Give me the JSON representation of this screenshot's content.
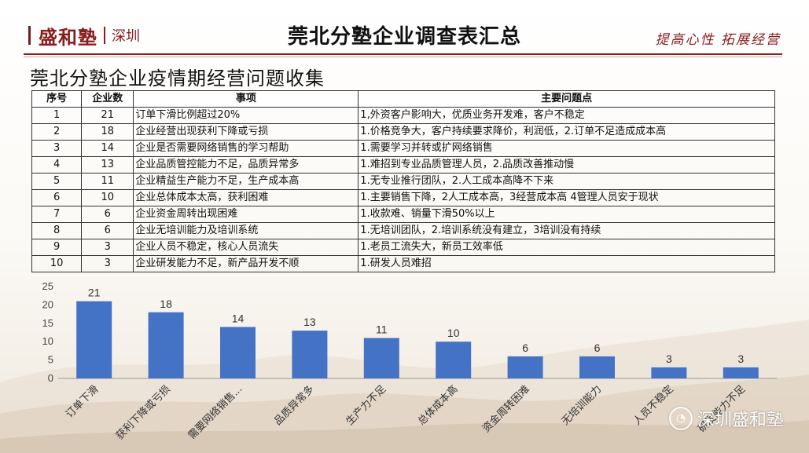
{
  "header": {
    "logo_brand": "盛和塾",
    "logo_city": "深圳",
    "title": "莞北分塾企业调查表汇总",
    "slogan": "提高心性  拓展经营"
  },
  "subtitle": "莞北分塾企业疫情期经营问题收集",
  "table": {
    "headers": [
      "序号",
      "企业数",
      "事项",
      "主要问题点"
    ],
    "rows": [
      [
        "1",
        "21",
        "订单下滑比例超过20%",
        "1,外资客户影响大，优质业务开发难，客户不稳定"
      ],
      [
        "2",
        "18",
        "企业经营出现获利下降或亏损",
        "1.价格竞争大，客户持续要求降价，利润低，2.订单不足造成成本高"
      ],
      [
        "3",
        "14",
        "企业是否需要网络销售的学习帮助",
        "1.需要学习并转或扩网络销售"
      ],
      [
        "4",
        "13",
        "企业品质管控能力不足，品质异常多",
        "1.难招到专业品质管理人员，2.品质改善推动慢"
      ],
      [
        "5",
        "11",
        "企业精益生产能力不足，生产成本高",
        "1.无专业推行团队，2.人工成本高降不下来"
      ],
      [
        "6",
        "10",
        "企业总体成本太高，获利困难",
        "1.主要销售下降，2人工成本高，3经营成本高 4管理人员安于现状"
      ],
      [
        "7",
        "6",
        "企业资金周转出现困难",
        "1.收款难、销量下滑50%以上"
      ],
      [
        "8",
        "6",
        "企业无培训能力及培训系统",
        "1.无培训团队，2.培训系统没有建立，3培训没有持续"
      ],
      [
        "9",
        "3",
        "企业人员不稳定，核心人员流失",
        "1.老员工流失大，新员工效率低"
      ],
      [
        "10",
        "3",
        "企业研发能力不足，新产品开发不顺",
        "1.研发人员难招"
      ]
    ]
  },
  "chart_data": {
    "type": "bar",
    "categories": [
      "订单下滑",
      "获利下降或亏损",
      "需要网络销售...",
      "品质异常多",
      "生产力不足",
      "总体成本高",
      "资金周转困难",
      "无培训能力",
      "人员不稳定",
      "研发能力不足"
    ],
    "values": [
      21,
      18,
      14,
      13,
      11,
      10,
      6,
      6,
      3,
      3
    ],
    "ylim": [
      0,
      25
    ],
    "yticks": [
      "0",
      "5",
      "10",
      "15",
      "20",
      "25"
    ],
    "bar_color": "#4472c4",
    "grid": false
  },
  "watermark": {
    "icon": "wechat-icon",
    "text": "深圳盛和塾"
  }
}
